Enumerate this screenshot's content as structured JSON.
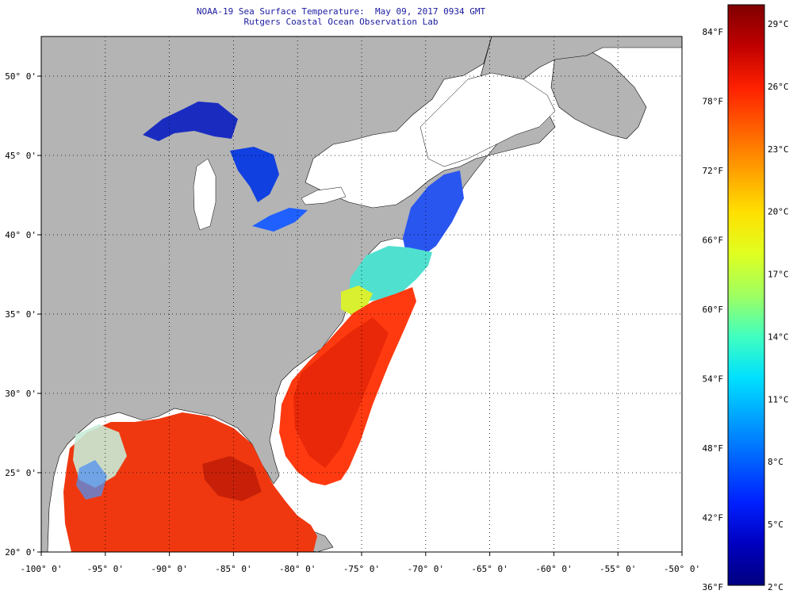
{
  "title": {
    "line1": "NOAA-19 Sea Surface Temperature:  May 09, 2017 0934 GMT",
    "line2": "Rutgers Coastal Ocean Observation Lab"
  },
  "map": {
    "lon_range": [
      -100,
      -50
    ],
    "lat_range": [
      20,
      52.5
    ],
    "lon_ticks": [
      "-100° 0'",
      "-95° 0'",
      "-90° 0'",
      "-85° 0'",
      "-80° 0'",
      "-75° 0'",
      "-70° 0'",
      "-65° 0'",
      "-60° 0'",
      "-55° 0'",
      "-50° 0'"
    ],
    "lat_ticks": [
      "20° 0'",
      "25° 0'",
      "30° 0'",
      "35° 0'",
      "40° 0'",
      "45° 0'",
      "50° 0'"
    ],
    "colors": {
      "land": "#b4b4b4",
      "no_data": "#ffffff",
      "grid": "#000000"
    }
  },
  "colorbar": {
    "fahrenheit": [
      "84°F",
      "78°F",
      "72°F",
      "66°F",
      "60°F",
      "54°F",
      "48°F",
      "42°F",
      "36°F"
    ],
    "celsius": [
      "29°C",
      "26°C",
      "23°C",
      "20°C",
      "17°C",
      "14°C",
      "11°C",
      "8°C",
      "5°C",
      "2°C"
    ],
    "gradient": [
      "#800000",
      "#c00000",
      "#ff2000",
      "#ff6000",
      "#ffa000",
      "#ffe000",
      "#e0ff20",
      "#a0ff60",
      "#40ffc0",
      "#00e0ff",
      "#00a0ff",
      "#0060ff",
      "#0020ff",
      "#0000c0",
      "#000080"
    ]
  }
}
